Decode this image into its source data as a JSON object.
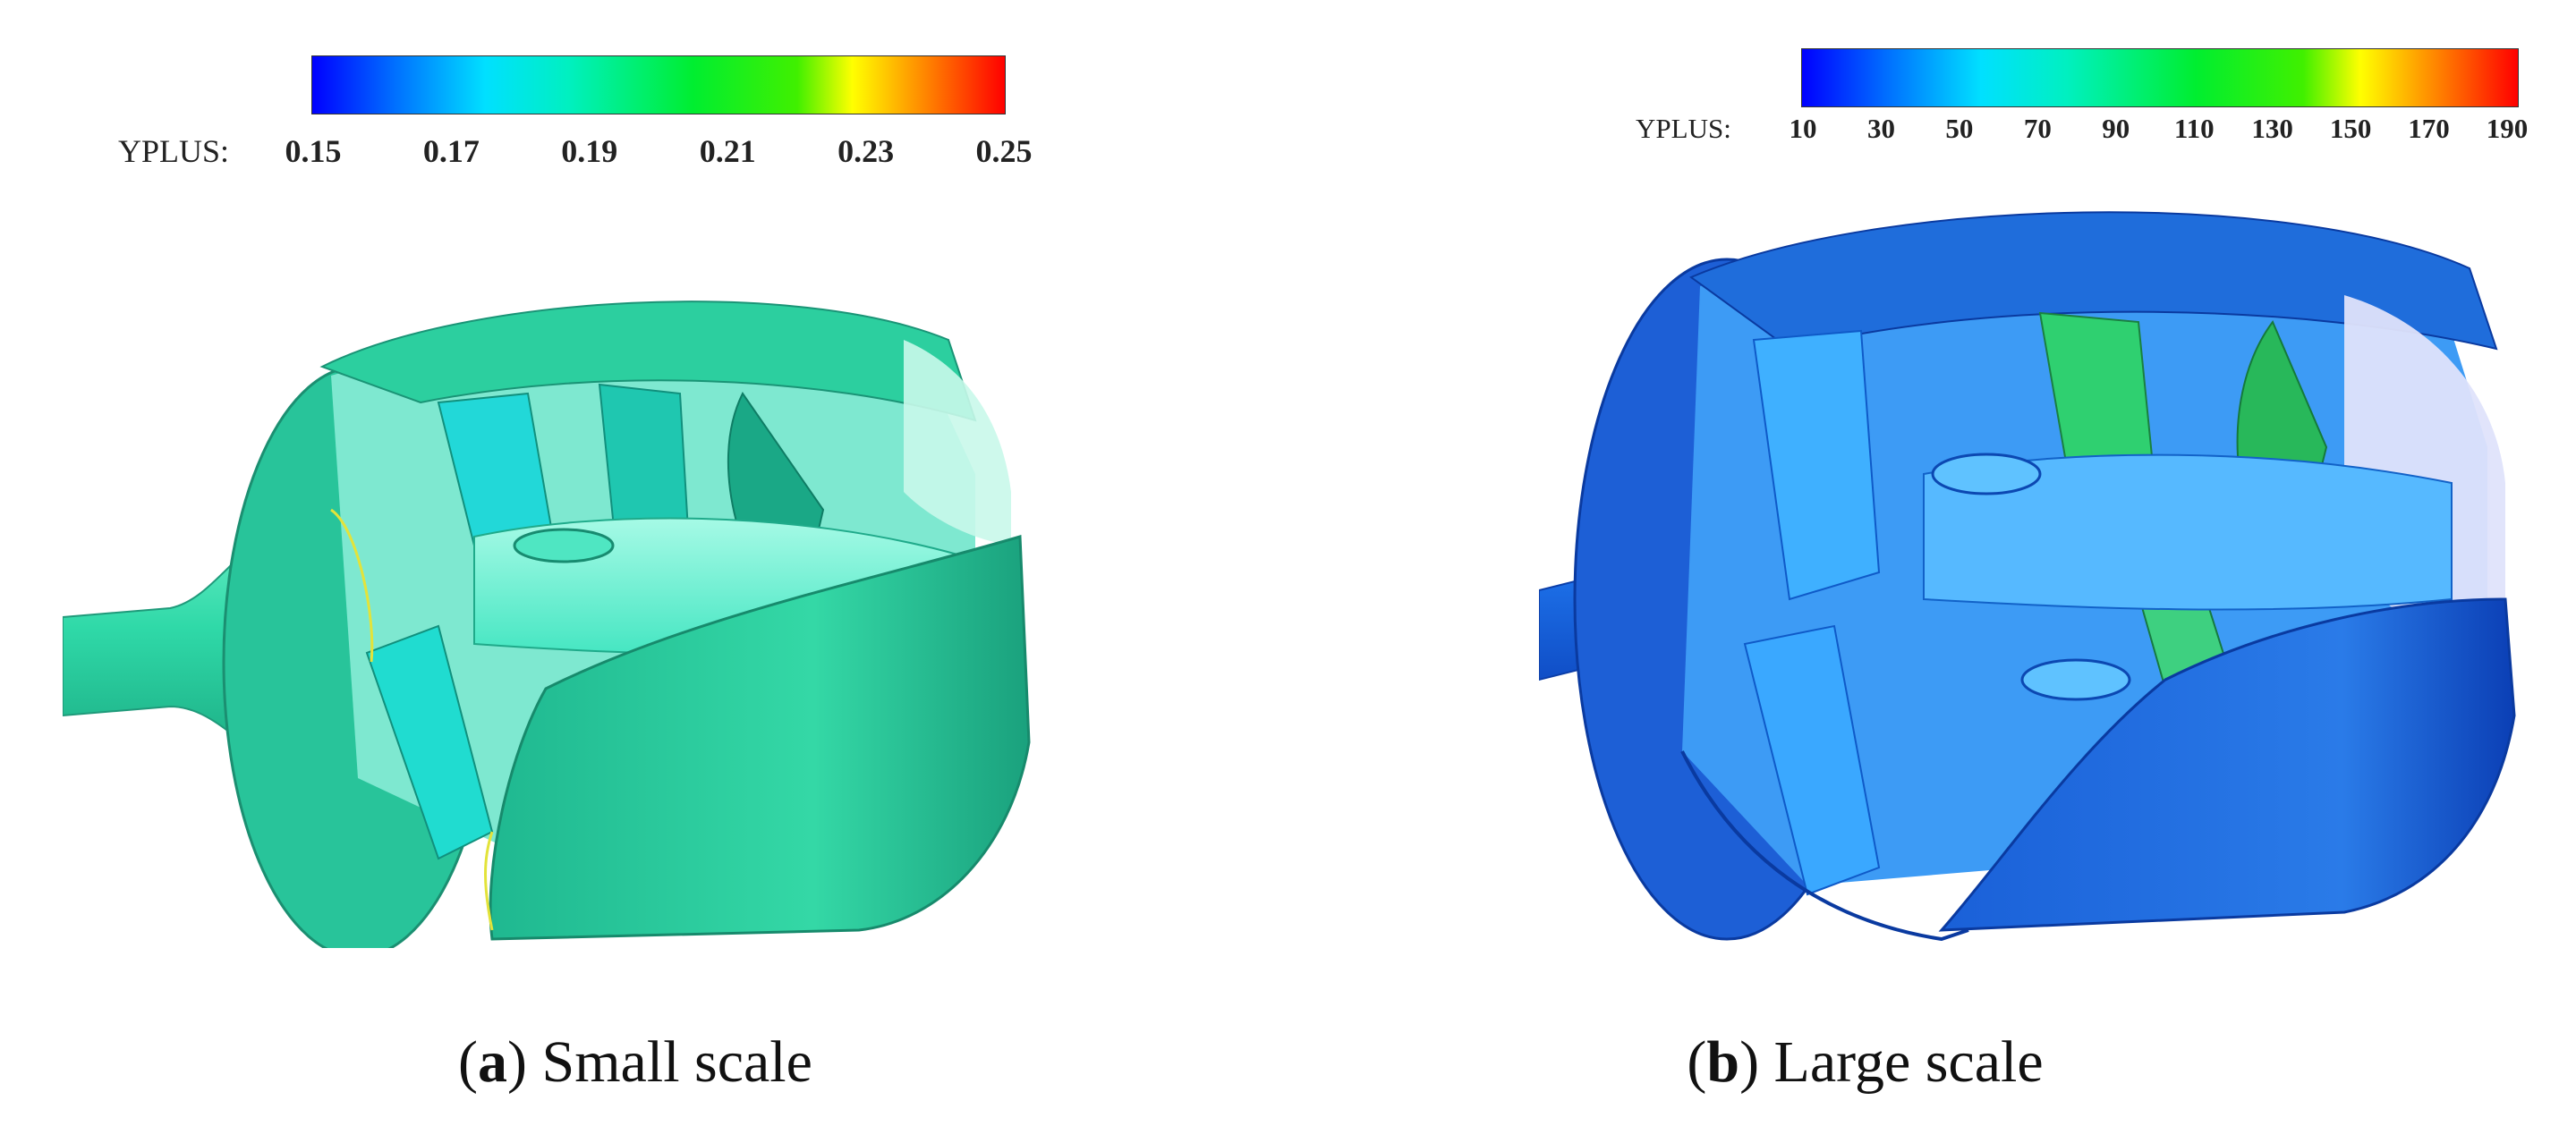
{
  "panels": [
    {
      "colorbar_title": "YPLUS:",
      "ticks": [
        "0.15",
        "0.17",
        "0.19",
        "0.21",
        "0.23",
        "0.25"
      ],
      "caption_letter": "a",
      "caption_text": "Small scale",
      "dominant_color": "#2fd9a8"
    },
    {
      "colorbar_title": "YPLUS:",
      "ticks": [
        "10",
        "30",
        "50",
        "70",
        "90",
        "110",
        "130",
        "150",
        "170",
        "190"
      ],
      "caption_letter": "b",
      "caption_text": "Large scale",
      "dominant_color": "#1e6ee6"
    }
  ],
  "colormap": [
    "#0000ff",
    "#00e0ff",
    "#00ee30",
    "#ffff00",
    "#ff0000"
  ]
}
